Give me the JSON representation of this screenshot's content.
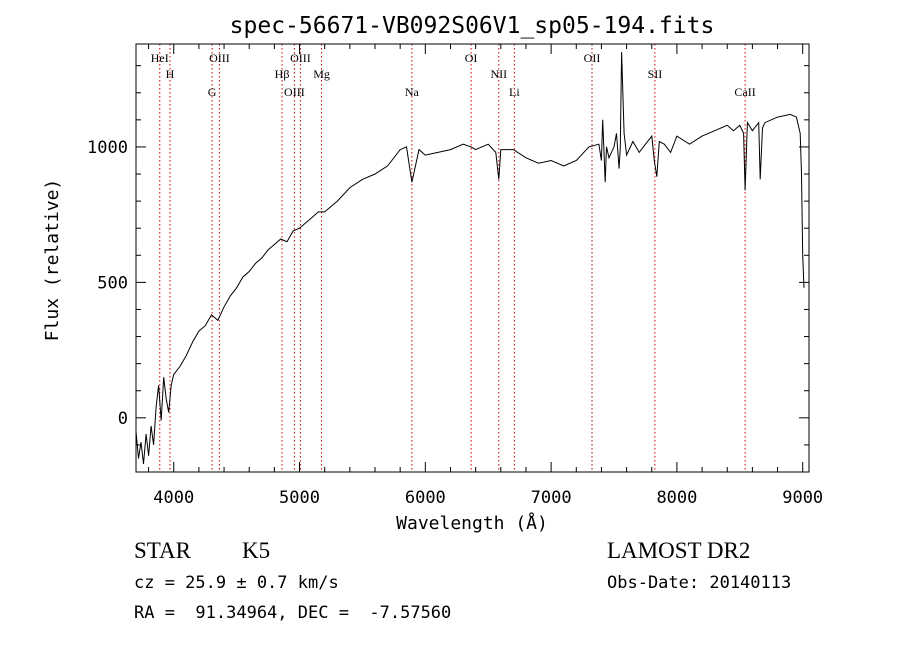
{
  "chart_data": {
    "type": "line",
    "title": "spec-56671-VB092S06V1_sp05-194.fits",
    "xlabel": "Wavelength (Å)",
    "ylabel": "Flux (relative)",
    "xlim": [
      3700,
      9050
    ],
    "ylim": [
      -200,
      1380
    ],
    "x_ticks": [
      4000,
      5000,
      6000,
      7000,
      8000,
      9000
    ],
    "y_ticks": [
      0,
      500,
      1000
    ],
    "x_tick_labels": [
      "4000",
      "5000",
      "6000",
      "7000",
      "8000",
      "9000"
    ],
    "y_tick_labels": [
      "0",
      "500",
      "1000"
    ],
    "grid": false,
    "line_color": "#000000",
    "marker_color": "#cc0000",
    "lines": [
      {
        "label": "HeI",
        "wavelength": 3889
      },
      {
        "label": "H",
        "wavelength": 3970
      },
      {
        "label": "G",
        "wavelength": 4305
      },
      {
        "label": "OIII",
        "wavelength": 4363
      },
      {
        "label": "Hβ",
        "wavelength": 4861
      },
      {
        "label": "OIII",
        "wavelength": 4959
      },
      {
        "label": "OIII",
        "wavelength": 5007
      },
      {
        "label": "Mg",
        "wavelength": 5175
      },
      {
        "label": "Na",
        "wavelength": 5893
      },
      {
        "label": "OI",
        "wavelength": 6364
      },
      {
        "label": "NII",
        "wavelength": 6584
      },
      {
        "label": "Li",
        "wavelength": 6708
      },
      {
        "label": "OII",
        "wavelength": 7325
      },
      {
        "label": "SII",
        "wavelength": 7825
      },
      {
        "label": "CaII",
        "wavelength": 8542
      }
    ],
    "spectrum": {
      "x": [
        3700,
        3720,
        3740,
        3760,
        3780,
        3800,
        3820,
        3840,
        3860,
        3880,
        3900,
        3920,
        3940,
        3960,
        3980,
        4000,
        4050,
        4100,
        4150,
        4200,
        4250,
        4300,
        4350,
        4400,
        4450,
        4500,
        4550,
        4600,
        4650,
        4700,
        4750,
        4800,
        4850,
        4900,
        4950,
        5000,
        5050,
        5100,
        5150,
        5200,
        5300,
        5400,
        5500,
        5600,
        5700,
        5800,
        5850,
        5893,
        5950,
        6000,
        6100,
        6200,
        6300,
        6364,
        6400,
        6500,
        6560,
        6584,
        6600,
        6700,
        6800,
        6900,
        7000,
        7100,
        7200,
        7300,
        7380,
        7400,
        7410,
        7430,
        7440,
        7460,
        7500,
        7520,
        7540,
        7550,
        7560,
        7580,
        7600,
        7650,
        7700,
        7750,
        7800,
        7820,
        7840,
        7860,
        7900,
        7950,
        8000,
        8100,
        8200,
        8300,
        8400,
        8450,
        8500,
        8530,
        8542,
        8560,
        8600,
        8650,
        8662,
        8680,
        8700,
        8800,
        8900,
        8950,
        8980,
        8990,
        9000,
        9010
      ],
      "y": [
        -50,
        -150,
        -90,
        -170,
        -60,
        -140,
        -30,
        -100,
        40,
        120,
        -10,
        150,
        70,
        20,
        120,
        160,
        190,
        230,
        280,
        320,
        340,
        380,
        360,
        410,
        450,
        480,
        520,
        540,
        570,
        590,
        620,
        640,
        660,
        650,
        690,
        700,
        720,
        740,
        760,
        760,
        800,
        850,
        880,
        900,
        930,
        990,
        1000,
        870,
        990,
        970,
        980,
        990,
        1010,
        1000,
        990,
        1010,
        980,
        880,
        990,
        990,
        960,
        940,
        950,
        930,
        950,
        1000,
        1010,
        950,
        1100,
        870,
        1000,
        960,
        1000,
        1050,
        920,
        1000,
        1350,
        1050,
        970,
        1020,
        980,
        1010,
        1040,
        950,
        890,
        1020,
        1010,
        980,
        1040,
        1010,
        1040,
        1060,
        1080,
        1060,
        1080,
        1050,
        840,
        1090,
        1060,
        1090,
        880,
        1070,
        1090,
        1110,
        1120,
        1110,
        1050,
        900,
        600,
        480
      ]
    }
  },
  "info": {
    "object_class": "STAR",
    "subclass": "K5",
    "cz": "cz = 25.9 ± 0.7 km/s",
    "radec": "RA =  91.34964, DEC =  -7.57560",
    "survey": "LAMOST DR2",
    "obs_date": "Obs-Date: 20140113"
  }
}
